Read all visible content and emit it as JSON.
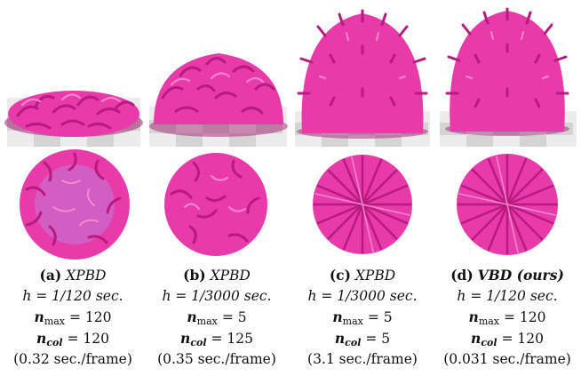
{
  "figure": {
    "panels": [
      {
        "tag": "(a)",
        "method": "XPBD",
        "method_bold": false,
        "h_text": "h = 1/120",
        "h_unit": "sec.",
        "n_max_label": "n",
        "n_max_sub": "max",
        "n_max_value": "= 120",
        "n_col_label": "n",
        "n_col_sub": "col",
        "n_col_value": "= 120",
        "timing": "(0.32 sec./frame)",
        "side_view": "flattened-fur-blob",
        "top_view": "tangled-fur-disc"
      },
      {
        "tag": "(b)",
        "method": "XPBD",
        "method_bold": false,
        "h_text": "h = 1/3000",
        "h_unit": "sec.",
        "n_max_label": "n",
        "n_max_sub": "max",
        "n_max_value": "= 5",
        "n_col_label": "n",
        "n_col_sub": "col",
        "n_col_value": "= 125",
        "timing": "(0.35 sec./frame)",
        "side_view": "half-collapsed-fur-blob",
        "top_view": "messy-fur-disc"
      },
      {
        "tag": "(c)",
        "method": "XPBD",
        "method_bold": false,
        "h_text": "h = 1/3000",
        "h_unit": "sec.",
        "n_max_label": "n",
        "n_max_sub": "max",
        "n_max_value": "= 5",
        "n_col_label": "n",
        "n_col_sub": "col",
        "n_col_value": "= 5",
        "timing": "(3.1 sec./frame)",
        "side_view": "upright-fur-dome",
        "top_view": "radial-fur-disc"
      },
      {
        "tag": "(d)",
        "method": "VBD (ours)",
        "method_bold": true,
        "h_text": "h = 1/120",
        "h_unit": "sec.",
        "n_max_label": "n",
        "n_max_sub": "max",
        "n_max_value": "= 120",
        "n_col_label": "n",
        "n_col_sub": "col",
        "n_col_value": "= 120",
        "timing": "(0.031 sec./frame)",
        "side_view": "upright-fur-dome",
        "top_view": "radial-fur-disc"
      }
    ],
    "colors": {
      "fur": "#e83aa8",
      "fur_dark": "#a8126e",
      "fur_light": "#f58ad0",
      "floor_light": "#f2f2f2",
      "floor_dark": "#cfcfcf"
    }
  }
}
